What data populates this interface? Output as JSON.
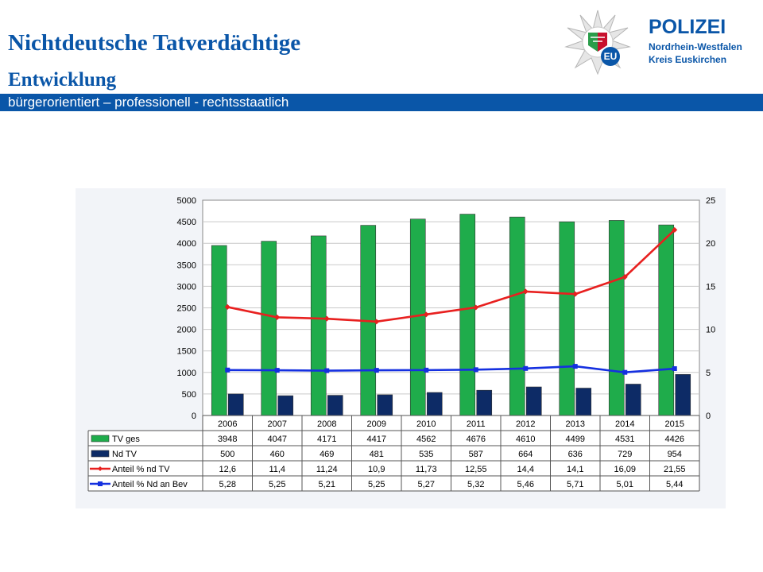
{
  "header": {
    "title": "Nichtdeutsche Tatverdächtige",
    "subtitle": "Entwicklung",
    "banner": "bürgerorientiert – professionell - rechtsstaatlich"
  },
  "logo": {
    "name": "POLIZEI",
    "line1": "Nordrhein-Westfalen",
    "line2": "Kreis Euskirchen",
    "badge": "EU"
  },
  "colors": {
    "brand_blue": "#0a56a8",
    "tv_ges": "#1fac4b",
    "nd_tv": "#0d2b66",
    "anteil_nd_tv": "#e8201f",
    "anteil_bev": "#1530e0"
  },
  "chart_data": {
    "type": "bar",
    "categories": [
      "2006",
      "2007",
      "2008",
      "2009",
      "2010",
      "2011",
      "2012",
      "2013",
      "2014",
      "2015"
    ],
    "left_axis": {
      "ylim": [
        0,
        5000
      ],
      "ticks": [
        "0",
        "500",
        "1000",
        "1500",
        "2000",
        "2500",
        "3000",
        "3500",
        "4000",
        "4500",
        "5000"
      ]
    },
    "right_axis": {
      "ylim": [
        0,
        25
      ],
      "ticks": [
        "0",
        "5",
        "10",
        "15",
        "20",
        "25"
      ]
    },
    "grid": true,
    "legend": "table-below",
    "series": [
      {
        "name": "TV ges",
        "type": "bar",
        "axis": "left",
        "values": [
          3948,
          4047,
          4171,
          4417,
          4562,
          4676,
          4610,
          4499,
          4531,
          4426
        ],
        "labels": [
          "3948",
          "4047",
          "4171",
          "4417",
          "4562",
          "4676",
          "4610",
          "4499",
          "4531",
          "4426"
        ]
      },
      {
        "name": "Nd TV",
        "type": "bar",
        "axis": "left",
        "values": [
          500,
          460,
          469,
          481,
          535,
          587,
          664,
          636,
          729,
          954
        ],
        "labels": [
          "500",
          "460",
          "469",
          "481",
          "535",
          "587",
          "664",
          "636",
          "729",
          "954"
        ]
      },
      {
        "name": "Anteil % nd TV",
        "type": "line",
        "axis": "right",
        "values": [
          12.6,
          11.4,
          11.24,
          10.9,
          11.73,
          12.55,
          14.4,
          14.1,
          16.09,
          21.55
        ],
        "labels": [
          "12,6",
          "11,4",
          "11,24",
          "10,9",
          "11,73",
          "12,55",
          "14,4",
          "14,1",
          "16,09",
          "21,55"
        ]
      },
      {
        "name": "Anteil % Nd an Bev",
        "type": "line",
        "axis": "right",
        "values": [
          5.28,
          5.25,
          5.21,
          5.25,
          5.27,
          5.32,
          5.46,
          5.71,
          5.01,
          5.44
        ],
        "labels": [
          "5,28",
          "5,25",
          "5,21",
          "5,25",
          "5,27",
          "5,32",
          "5,46",
          "5,71",
          "5,01",
          "5,44"
        ]
      }
    ]
  }
}
